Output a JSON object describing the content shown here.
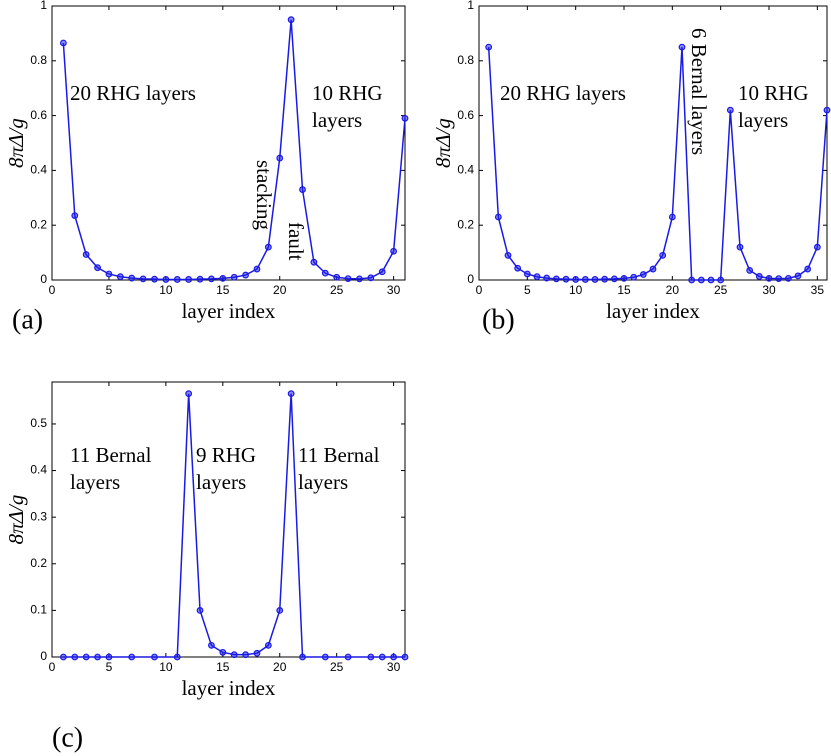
{
  "chart_data": [
    {
      "type": "line",
      "panel_label": "(a)",
      "xlabel": "layer index",
      "ylabel": "8πΔ/g",
      "color": "#1a1ae6",
      "x": [
        1,
        2,
        3,
        4,
        5,
        6,
        7,
        8,
        9,
        10,
        11,
        12,
        13,
        14,
        15,
        16,
        17,
        18,
        19,
        20,
        21,
        22,
        23,
        24,
        25,
        26,
        27,
        28,
        29,
        30,
        31
      ],
      "values": [
        0.865,
        0.235,
        0.093,
        0.045,
        0.022,
        0.012,
        0.007,
        0.004,
        0.003,
        0.002,
        0.002,
        0.002,
        0.003,
        0.004,
        0.006,
        0.01,
        0.018,
        0.04,
        0.12,
        0.445,
        0.95,
        0.33,
        0.065,
        0.025,
        0.01,
        0.005,
        0.004,
        0.008,
        0.03,
        0.105,
        0.59
      ],
      "xlim": [
        0,
        31
      ],
      "xticks": [
        0,
        5,
        10,
        15,
        20,
        25,
        30
      ],
      "ylim": [
        0,
        1
      ],
      "yticks": [
        0,
        0.2,
        0.4,
        0.6,
        0.8,
        1
      ],
      "annotations": [
        [
          "20 RHG layers"
        ],
        [
          "10 RHG",
          "layers"
        ],
        [
          "stacking",
          "fault"
        ]
      ]
    },
    {
      "type": "line",
      "panel_label": "(b)",
      "xlabel": "layer index",
      "ylabel": "8πΔ/g",
      "color": "#1a1ae6",
      "x": [
        1,
        2,
        3,
        4,
        5,
        6,
        7,
        8,
        9,
        10,
        11,
        12,
        13,
        14,
        15,
        16,
        17,
        18,
        19,
        20,
        21,
        22,
        23,
        24,
        25,
        26,
        27,
        28,
        29,
        30,
        31,
        32,
        33,
        34,
        35,
        36
      ],
      "values": [
        0.85,
        0.23,
        0.09,
        0.043,
        0.022,
        0.012,
        0.007,
        0.004,
        0.003,
        0.002,
        0.002,
        0.002,
        0.003,
        0.004,
        0.006,
        0.01,
        0.02,
        0.04,
        0.09,
        0.23,
        0.85,
        0,
        0,
        0,
        0,
        0.62,
        0.12,
        0.035,
        0.013,
        0.006,
        0.005,
        0.006,
        0.015,
        0.04,
        0.12,
        0.62
      ],
      "xlim": [
        0,
        36
      ],
      "xticks": [
        0,
        5,
        10,
        15,
        20,
        25,
        30,
        35
      ],
      "ylim": [
        0,
        1
      ],
      "yticks": [
        0,
        0.2,
        0.4,
        0.6,
        0.8,
        1
      ],
      "annotations": [
        [
          "20 RHG layers"
        ],
        [
          "6 Bernal layers"
        ],
        [
          "10 RHG",
          "layers"
        ]
      ]
    },
    {
      "type": "line",
      "panel_label": "(c)",
      "xlabel": "layer index",
      "ylabel": "8πΔ/g",
      "color": "#1a1ae6",
      "x": [
        1,
        2,
        3,
        4,
        5,
        7,
        9,
        11,
        12,
        13,
        14,
        15,
        16,
        17,
        18,
        19,
        20,
        21,
        22,
        24,
        26,
        28,
        29,
        30,
        31
      ],
      "values": [
        0,
        0,
        0,
        0,
        0,
        0,
        0,
        0,
        0.565,
        0.1,
        0.025,
        0.01,
        0.005,
        0.005,
        0.008,
        0.025,
        0.1,
        0.565,
        0,
        0,
        0,
        0,
        0,
        0,
        0
      ],
      "xlim": [
        0,
        31
      ],
      "xticks": [
        0,
        5,
        10,
        15,
        20,
        25,
        30
      ],
      "ylim": [
        0,
        0.59
      ],
      "yticks": [
        0,
        0.1,
        0.2,
        0.3,
        0.4,
        0.5
      ],
      "annotations": [
        [
          "11 Bernal",
          "layers"
        ],
        [
          "9 RHG",
          "layers"
        ],
        [
          "11 Bernal",
          "layers"
        ]
      ]
    }
  ]
}
